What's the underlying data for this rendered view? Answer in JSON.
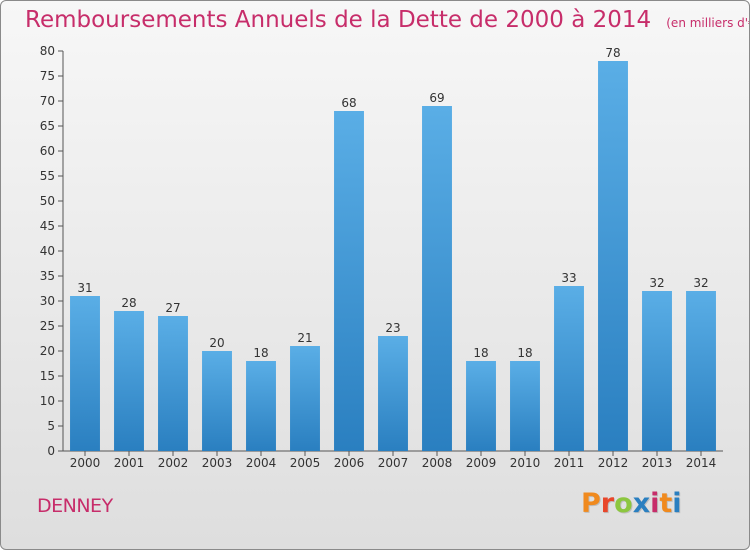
{
  "chart_data": {
    "type": "bar",
    "title": "Remboursements Annuels de la Dette de 2000 à 2014",
    "unit_note": "(en milliers d'€)",
    "categories": [
      "2000",
      "2001",
      "2002",
      "2003",
      "2004",
      "2005",
      "2006",
      "2007",
      "2008",
      "2009",
      "2010",
      "2011",
      "2012",
      "2013",
      "2014"
    ],
    "values": [
      31,
      28,
      27,
      20,
      18,
      21,
      68,
      23,
      69,
      18,
      18,
      33,
      78,
      32,
      32
    ],
    "ylim": [
      0,
      80
    ],
    "yticks": [
      0,
      5,
      10,
      15,
      20,
      25,
      30,
      35,
      40,
      45,
      50,
      55,
      60,
      65,
      70,
      75,
      80
    ],
    "grid": false,
    "legend": "none",
    "bar_color_top": "#5aaee6",
    "bar_color_bottom": "#2a7fc0"
  },
  "footer": {
    "commune": "DENNEY",
    "brand": "Proxiti",
    "brand_colors": [
      "#f08a1e",
      "#e8462a",
      "#8cc63f",
      "#2a7fc0",
      "#c72d6a",
      "#f08a1e",
      "#2a7fc0"
    ]
  },
  "colors": {
    "accent": "#c72d6a",
    "axis": "#555555"
  }
}
